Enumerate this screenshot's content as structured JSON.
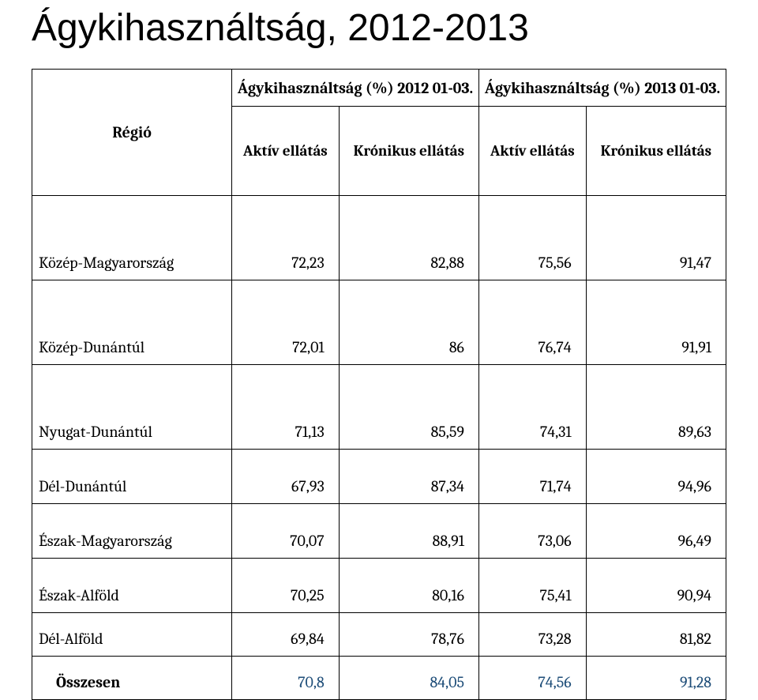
{
  "title": "Ágykihasználtság, 2012-2013",
  "header": {
    "regio": "Régió",
    "col_2012": "Ágykihasználtság (%) 2012 01-03.",
    "col_2013": "Ágykihasználtság (%) 2013 01-03.",
    "sub_aktiv": "Aktív ellátás",
    "sub_kronikus": "Krónikus ellátás"
  },
  "rows": [
    {
      "name": "Közép-Magyarország",
      "a12": "72,23",
      "k12": "82,88",
      "a13": "75,56",
      "k13": "91,47",
      "cls": "rh-lg"
    },
    {
      "name": "Közép-Dunántúl",
      "a12": "72,01",
      "k12": "86",
      "a13": "76,74",
      "k13": "91,91",
      "cls": "rh-lg"
    },
    {
      "name": "Nyugat-Dunántúl",
      "a12": "71,13",
      "k12": "85,59",
      "a13": "74,31",
      "k13": "89,63",
      "cls": "rh-lg"
    },
    {
      "name": "Dél-Dunántúl",
      "a12": "67,93",
      "k12": "87,34",
      "a13": "71,74",
      "k13": "94,96",
      "cls": "rh-md"
    },
    {
      "name": "Észak-Magyarország",
      "a12": "70,07",
      "k12": "88,91",
      "a13": "73,06",
      "k13": "96,49",
      "cls": "rh-md"
    },
    {
      "name": "Észak-Alföld",
      "a12": "70,25",
      "k12": "80,16",
      "a13": "75,41",
      "k13": "90,94",
      "cls": "rh-md"
    },
    {
      "name": "Dél-Alföld",
      "a12": "69,84",
      "k12": "78,76",
      "a13": "73,28",
      "k13": "81,82",
      "cls": "rh-sm"
    }
  ],
  "total": {
    "name": "Összesen",
    "a12": "70,8",
    "k12": "84,05",
    "a13": "74,56",
    "k13": "91,28"
  },
  "colors": {
    "text": "#000000",
    "total_num": "#1f4e79",
    "border": "#000000",
    "background": "#ffffff"
  }
}
